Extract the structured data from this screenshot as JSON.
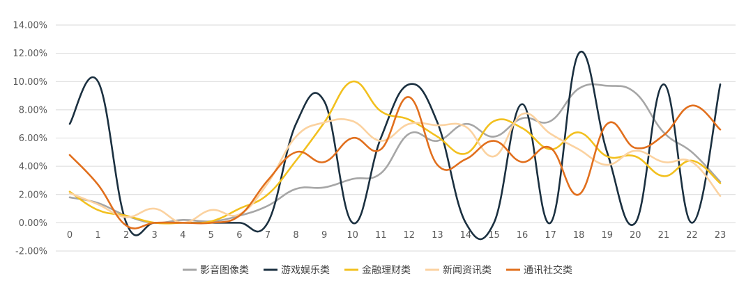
{
  "chart_data": {
    "type": "line",
    "title": "",
    "xlabel": "",
    "ylabel": "",
    "x": [
      0,
      1,
      2,
      3,
      4,
      5,
      6,
      7,
      8,
      9,
      10,
      11,
      12,
      13,
      14,
      15,
      16,
      17,
      18,
      19,
      20,
      21,
      22,
      23
    ],
    "ylim": [
      -0.02,
      0.14
    ],
    "yticks": [
      "-2.00%",
      "0.00%",
      "2.00%",
      "4.00%",
      "6.00%",
      "8.00%",
      "10.00%",
      "12.00%",
      "14.00%"
    ],
    "ytick_values": [
      -0.02,
      0,
      0.02,
      0.04,
      0.06,
      0.08,
      0.1,
      0.12,
      0.14
    ],
    "xticks": [
      "0",
      "1",
      "2",
      "3",
      "4",
      "5",
      "6",
      "7",
      "8",
      "9",
      "10",
      "11",
      "12",
      "13",
      "14",
      "15",
      "16",
      "17",
      "18",
      "19",
      "20",
      "21",
      "22",
      "23"
    ],
    "grid": true,
    "legend_position": "bottom",
    "series": [
      {
        "name": "影音图像类",
        "color": "#a6a6a6",
        "values": [
          0.018,
          0.014,
          0.005,
          0.0,
          0.002,
          0.001,
          0.005,
          0.012,
          0.024,
          0.025,
          0.031,
          0.035,
          0.063,
          0.058,
          0.07,
          0.061,
          0.074,
          0.072,
          0.095,
          0.097,
          0.092,
          0.064,
          0.05,
          0.029
        ]
      },
      {
        "name": "游戏娱乐类",
        "color": "#1b3040",
        "values": [
          0.07,
          0.1,
          0.0,
          0.0,
          0.0,
          0.0,
          0.0,
          0.0,
          0.07,
          0.086,
          0.0,
          0.06,
          0.098,
          0.071,
          0.0,
          0.0,
          0.084,
          0.0,
          0.12,
          0.05,
          0.0,
          0.098,
          0.0,
          0.098
        ]
      },
      {
        "name": "金融理财类",
        "color": "#f2c01e",
        "values": [
          0.022,
          0.009,
          0.005,
          0.0,
          0.0,
          0.001,
          0.01,
          0.02,
          0.044,
          0.071,
          0.1,
          0.079,
          0.073,
          0.061,
          0.049,
          0.072,
          0.067,
          0.052,
          0.064,
          0.047,
          0.047,
          0.033,
          0.044,
          0.028
        ]
      },
      {
        "name": "新闻资讯类",
        "color": "#fbd2a0",
        "values": [
          0.021,
          0.013,
          0.004,
          0.01,
          0.0,
          0.009,
          0.006,
          0.028,
          0.061,
          0.071,
          0.072,
          0.058,
          0.07,
          0.069,
          0.068,
          0.047,
          0.077,
          0.063,
          0.052,
          0.041,
          0.051,
          0.043,
          0.043,
          0.019
        ]
      },
      {
        "name": "通讯社交类",
        "color": "#e16f1d",
        "values": [
          0.048,
          0.027,
          -0.002,
          0.0,
          0.0,
          0.0,
          0.005,
          0.03,
          0.05,
          0.043,
          0.06,
          0.052,
          0.089,
          0.041,
          0.045,
          0.058,
          0.043,
          0.053,
          0.02,
          0.07,
          0.053,
          0.062,
          0.083,
          0.066
        ]
      }
    ]
  }
}
